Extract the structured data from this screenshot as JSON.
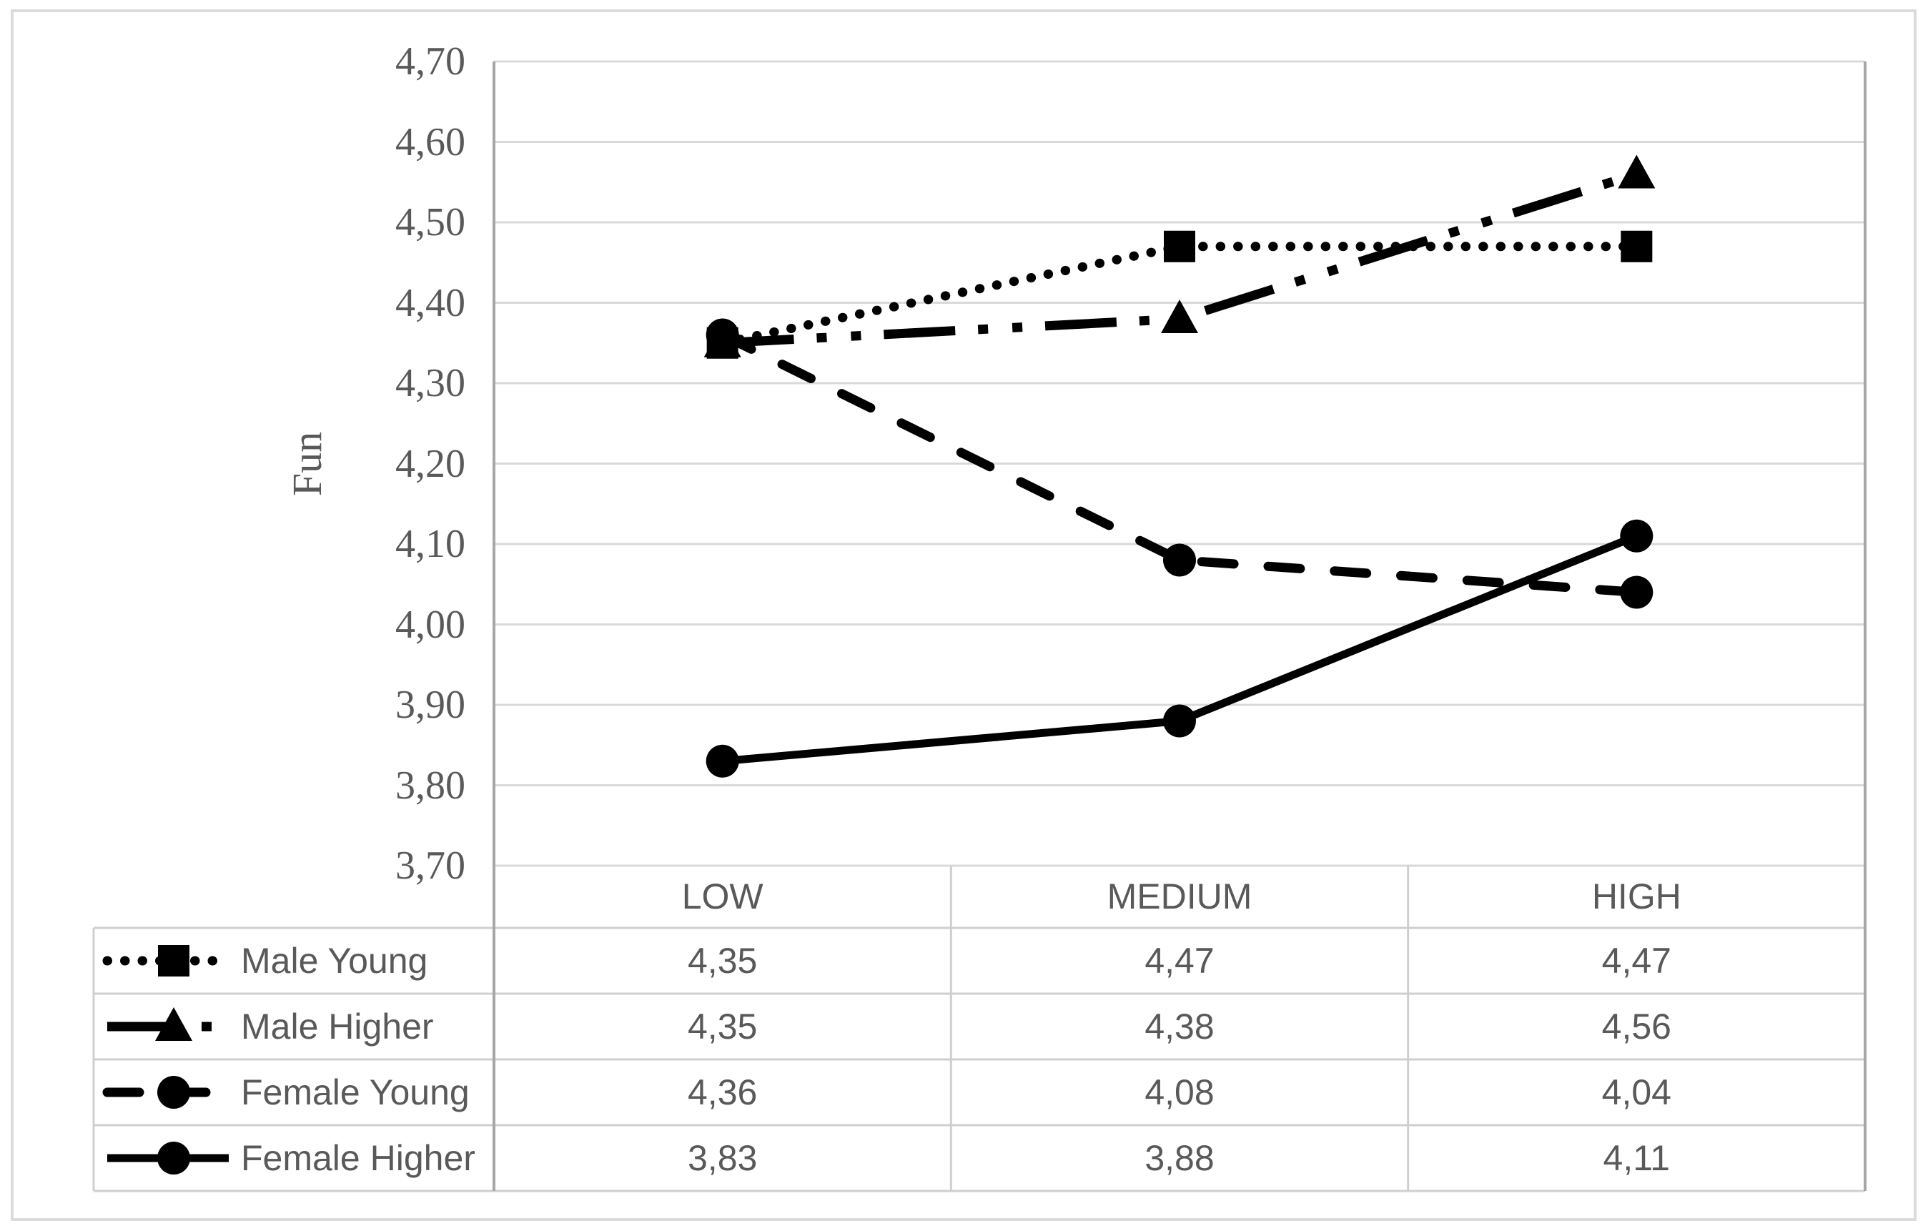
{
  "chart_data": {
    "type": "line",
    "title": "",
    "xlabel": "",
    "ylabel": "Fun",
    "categories": [
      "LOW",
      "MEDIUM",
      "HIGH"
    ],
    "yticks": [
      "4,70",
      "4,60",
      "4,50",
      "4,40",
      "4,30",
      "4,20",
      "4,10",
      "4,00",
      "3,90",
      "3,80",
      "3,70"
    ],
    "ylim": [
      3.7,
      4.7
    ],
    "decimal_separator": ",",
    "grid": "horizontal",
    "legend_position": "data-table-left-keys",
    "series": [
      {
        "name": "Male Young",
        "marker": "square",
        "line_style": "dotted",
        "values": [
          4.35,
          4.47,
          4.47
        ],
        "values_display": [
          "4,35",
          "4,47",
          "4,47"
        ]
      },
      {
        "name": "Male Higher",
        "marker": "triangle",
        "line_style": "long-dash-dot-dot",
        "values": [
          4.35,
          4.38,
          4.56
        ],
        "values_display": [
          "4,35",
          "4,38",
          "4,56"
        ]
      },
      {
        "name": "Female Young",
        "marker": "circle",
        "line_style": "dashed",
        "values": [
          4.36,
          4.08,
          4.04
        ],
        "values_display": [
          "4,36",
          "4,08",
          "4,04"
        ]
      },
      {
        "name": "Female Higher",
        "marker": "circle",
        "line_style": "solid",
        "values": [
          3.83,
          3.88,
          4.11
        ],
        "values_display": [
          "3,83",
          "3,88",
          "4,11"
        ]
      }
    ],
    "colors": {
      "series_color": "#000000",
      "text_color": "#595959",
      "gridline_color": "#d9d9d9",
      "axis_line_color": "#a6a6a6",
      "table_border_color": "#cfcfcf",
      "outer_border_color": "#dbdbdb",
      "background": "#ffffff"
    }
  }
}
